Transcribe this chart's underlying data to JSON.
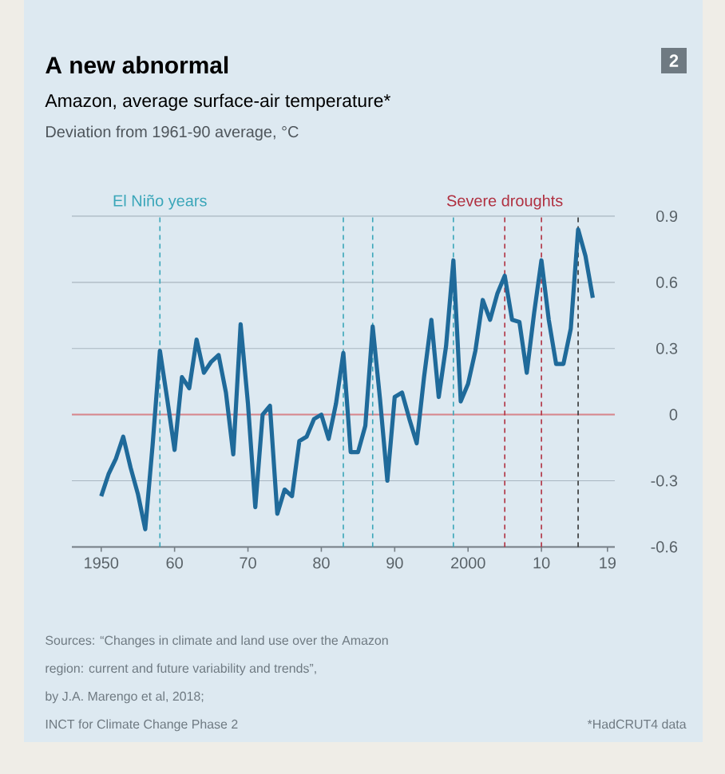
{
  "chart_data": {
    "type": "line",
    "title": "A new abnormal",
    "subtitle": "Amazon, average surface-air temperature*",
    "ylabel": "Deviation from 1961-90 average, °C",
    "x": [
      1950,
      1951,
      1952,
      1953,
      1954,
      1955,
      1956,
      1957,
      1958,
      1959,
      1960,
      1961,
      1962,
      1963,
      1964,
      1965,
      1966,
      1967,
      1968,
      1969,
      1970,
      1971,
      1972,
      1973,
      1974,
      1975,
      1976,
      1977,
      1978,
      1979,
      1980,
      1981,
      1982,
      1983,
      1984,
      1985,
      1986,
      1987,
      1988,
      1989,
      1990,
      1991,
      1992,
      1993,
      1994,
      1995,
      1996,
      1997,
      1998,
      1999,
      2000,
      2001,
      2002,
      2003,
      2004,
      2005,
      2006,
      2007,
      2008,
      2009,
      2010,
      2011,
      2012,
      2013,
      2014,
      2015,
      2016,
      2017
    ],
    "series": [
      {
        "color": "#1f6a9a",
        "values": [
          -0.37,
          -0.27,
          -0.2,
          -0.1,
          -0.24,
          -0.36,
          -0.52,
          -0.14,
          0.29,
          0.07,
          -0.16,
          0.17,
          0.12,
          0.34,
          0.19,
          0.24,
          0.27,
          0.1,
          -0.18,
          0.41,
          0.05,
          -0.42,
          0.0,
          0.04,
          -0.45,
          -0.34,
          -0.37,
          -0.12,
          -0.1,
          -0.02,
          0.0,
          -0.11,
          0.05,
          0.28,
          -0.17,
          -0.17,
          -0.05,
          0.4,
          0.07,
          -0.3,
          0.08,
          0.1,
          -0.02,
          -0.13,
          0.17,
          0.43,
          0.08,
          0.31,
          0.7,
          0.06,
          0.14,
          0.29,
          0.52,
          0.43,
          0.55,
          0.63,
          0.43,
          0.42,
          0.19,
          0.46,
          0.7,
          0.43,
          0.23,
          0.23,
          0.39,
          0.84,
          0.72,
          0.53
        ]
      }
    ],
    "xlim": [
      1946,
      2020
    ],
    "xticks": [
      1950,
      {
        "value": 1960,
        "label": "60"
      },
      {
        "value": 1970,
        "label": "70"
      },
      {
        "value": 1980,
        "label": "80"
      },
      {
        "value": 1990,
        "label": "90"
      },
      2000,
      {
        "value": 2010,
        "label": "10"
      },
      {
        "value": 2019,
        "label": "19"
      }
    ],
    "ylim": [
      -0.6,
      0.9
    ],
    "yticks": [
      -0.6,
      -0.3,
      0,
      0.3,
      0.6,
      0.9
    ],
    "grid": "y",
    "line_style": "solid",
    "ref_lines": [
      {
        "axis": "y",
        "value": 0,
        "color": "#d9868c",
        "line_style": "solid"
      },
      {
        "axis": "x",
        "value": 1958,
        "label": "El Niño years",
        "color": "#3aa6b9",
        "line_style": "dashed"
      },
      {
        "axis": "x",
        "value": 1983,
        "color": "#3aa6b9",
        "line_style": "dashed"
      },
      {
        "axis": "x",
        "value": 1987,
        "color": "#3aa6b9",
        "line_style": "dashed"
      },
      {
        "axis": "x",
        "value": 1998,
        "color": "#3aa6b9",
        "line_style": "dashed"
      },
      {
        "axis": "x",
        "value": 2005,
        "label": "Severe droughts",
        "color": "#b03040",
        "line_style": "dashed"
      },
      {
        "axis": "x",
        "value": 2010,
        "color": "#b03040",
        "line_style": "dashed"
      },
      {
        "axis": "x",
        "value": 2015,
        "color": "#333333",
        "line_style": "dashed"
      }
    ],
    "annotations": [
      "Sources: “Changes in climate and land use over the Amazon",
      "region: current and future variability and trends”,",
      "by J.A. Marengo et al, 2018;",
      "INCT for Climate Change Phase 2",
      "*HadCRUT4 data",
      "2"
    ]
  }
}
